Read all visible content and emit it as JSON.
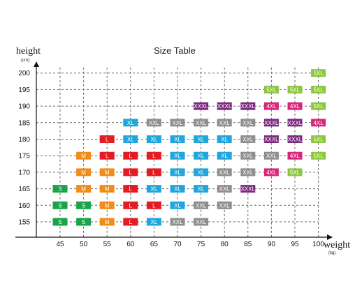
{
  "chart_data": {
    "type": "table",
    "title": "Size Table",
    "ylabel": "height",
    "yunit": "(cm)",
    "xlabel": "weight",
    "xunit": "(kg)",
    "x": [
      45,
      50,
      55,
      60,
      65,
      70,
      75,
      80,
      85,
      90,
      95,
      100
    ],
    "y": [
      155,
      160,
      165,
      170,
      175,
      180,
      185,
      190,
      195,
      200
    ],
    "grid": true,
    "size_colors": {
      "S": "#1aa34a",
      "M": "#f08c1a",
      "L": "#e31b23",
      "XL": "#1fa6dc",
      "XXL": "#8e8e8e",
      "XXXL": "#7b2a7f",
      "4XL": "#d9267a",
      "5XL": "#8cc63f"
    },
    "cells": [
      {
        "height": 200,
        "sizes": [
          "",
          "",
          "",
          "",
          "",
          "",
          "",
          "",
          "",
          "",
          "",
          "5XL"
        ]
      },
      {
        "height": 195,
        "sizes": [
          "",
          "",
          "",
          "",
          "",
          "",
          "",
          "",
          "",
          "5XL",
          "5XL",
          "5XL"
        ]
      },
      {
        "height": 190,
        "sizes": [
          "",
          "",
          "",
          "",
          "",
          "",
          "XXXL",
          "XXXL",
          "XXXL",
          "4XL",
          "4XL",
          "5XL"
        ]
      },
      {
        "height": 185,
        "sizes": [
          "",
          "",
          "",
          "XL",
          "XXL",
          "XXL",
          "XXL",
          "XXL",
          "XXL",
          "XXXL",
          "XXXL",
          "4XL"
        ]
      },
      {
        "height": 180,
        "sizes": [
          "",
          "",
          "L",
          "XL",
          "XL",
          "XL",
          "XL",
          "XL",
          "XXL",
          "XXXL",
          "XXXL",
          "5XL"
        ]
      },
      {
        "height": 175,
        "sizes": [
          "",
          "M",
          "L",
          "L",
          "L",
          "XL",
          "XL",
          "XL",
          "XXL",
          "XXL",
          "4XL",
          "5XL"
        ]
      },
      {
        "height": 170,
        "sizes": [
          "",
          "M",
          "M",
          "L",
          "L",
          "XL",
          "XL",
          "XXL",
          "XXL",
          "4XL",
          "5XL",
          ""
        ]
      },
      {
        "height": 165,
        "sizes": [
          "S",
          "M",
          "M",
          "L",
          "XL",
          "XL",
          "XL",
          "XXL",
          "XXXL",
          "",
          "",
          ""
        ]
      },
      {
        "height": 160,
        "sizes": [
          "S",
          "S",
          "M",
          "L",
          "L",
          "XL",
          "XXL",
          "XXL",
          "",
          "",
          "",
          ""
        ]
      },
      {
        "height": 155,
        "sizes": [
          "S",
          "S",
          "M",
          "L",
          "XL",
          "XXL",
          "XXL",
          "",
          "",
          "",
          "",
          ""
        ]
      }
    ]
  }
}
